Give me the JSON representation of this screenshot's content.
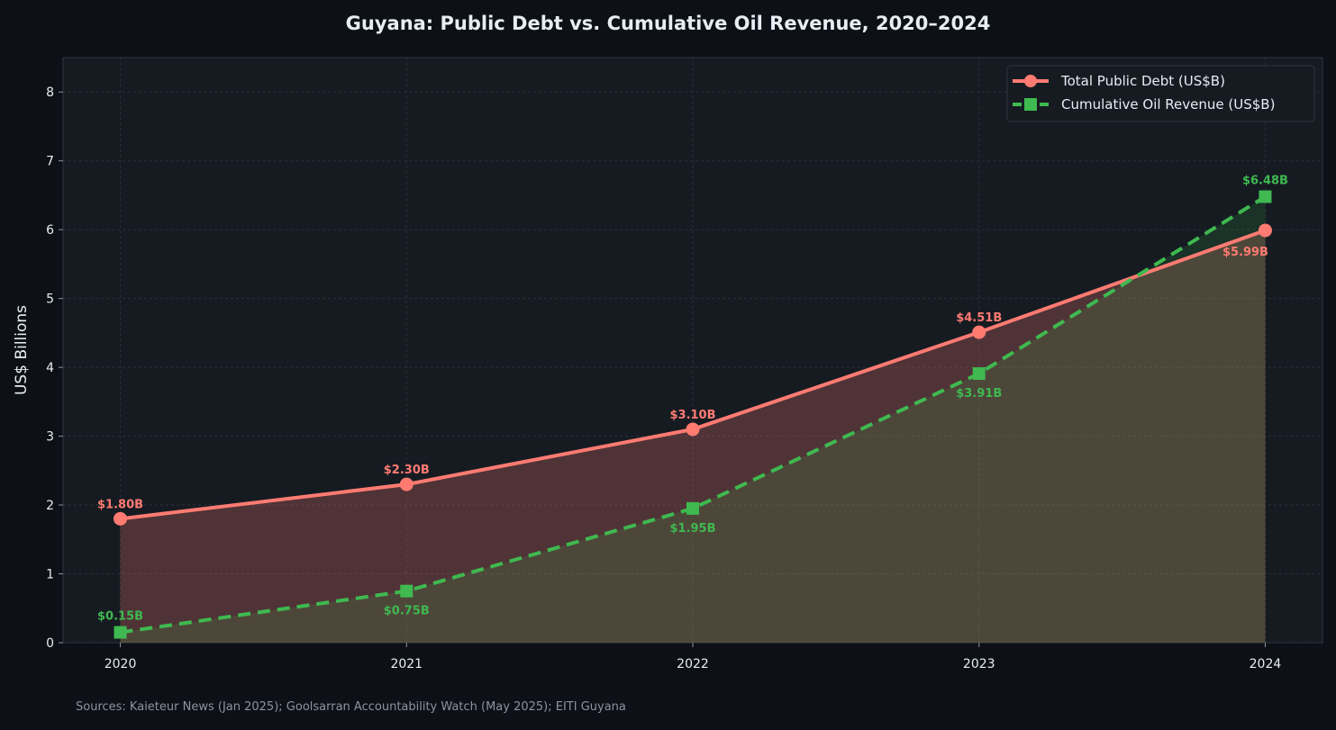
{
  "chart_data": {
    "type": "line",
    "title": "Guyana: Public Debt vs. Cumulative Oil Revenue, 2020–2024",
    "xlabel": "",
    "ylabel": "US$ Billions",
    "x": [
      2020,
      2021,
      2022,
      2023,
      2024
    ],
    "x_tick_labels": [
      "2020",
      "2021",
      "2022",
      "2023",
      "2024"
    ],
    "y_ticks": [
      0,
      1,
      2,
      3,
      4,
      5,
      6,
      7,
      8
    ],
    "ylim": [
      0,
      8.5
    ],
    "xlim": [
      2019.8,
      2024.2
    ],
    "grid": true,
    "legend_position": "top-right",
    "series": [
      {
        "name": "Total Public Debt (US$B)",
        "values": [
          1.8,
          2.3,
          3.1,
          4.51,
          5.99
        ],
        "labels": [
          "$1.80B",
          "$2.30B",
          "$3.10B",
          "$4.51B",
          "$5.99B"
        ],
        "color": "#ff7b72",
        "marker": "circle",
        "linestyle": "solid",
        "filled": true
      },
      {
        "name": "Cumulative Oil Revenue (US$B)",
        "values": [
          0.15,
          0.75,
          1.95,
          3.91,
          6.48
        ],
        "labels": [
          "$0.15B",
          "$0.75B",
          "$1.95B",
          "$3.91B",
          "$6.48B"
        ],
        "color": "#3fb950",
        "marker": "square",
        "linestyle": "dashed",
        "filled": true
      }
    ],
    "source": "Sources: Kaieteur News (Jan 2025); Goolsarran Accountability Watch (May 2025); EITI Guyana"
  },
  "colors": {
    "background": "#0d1117",
    "plot_background": "#161b22"
  }
}
